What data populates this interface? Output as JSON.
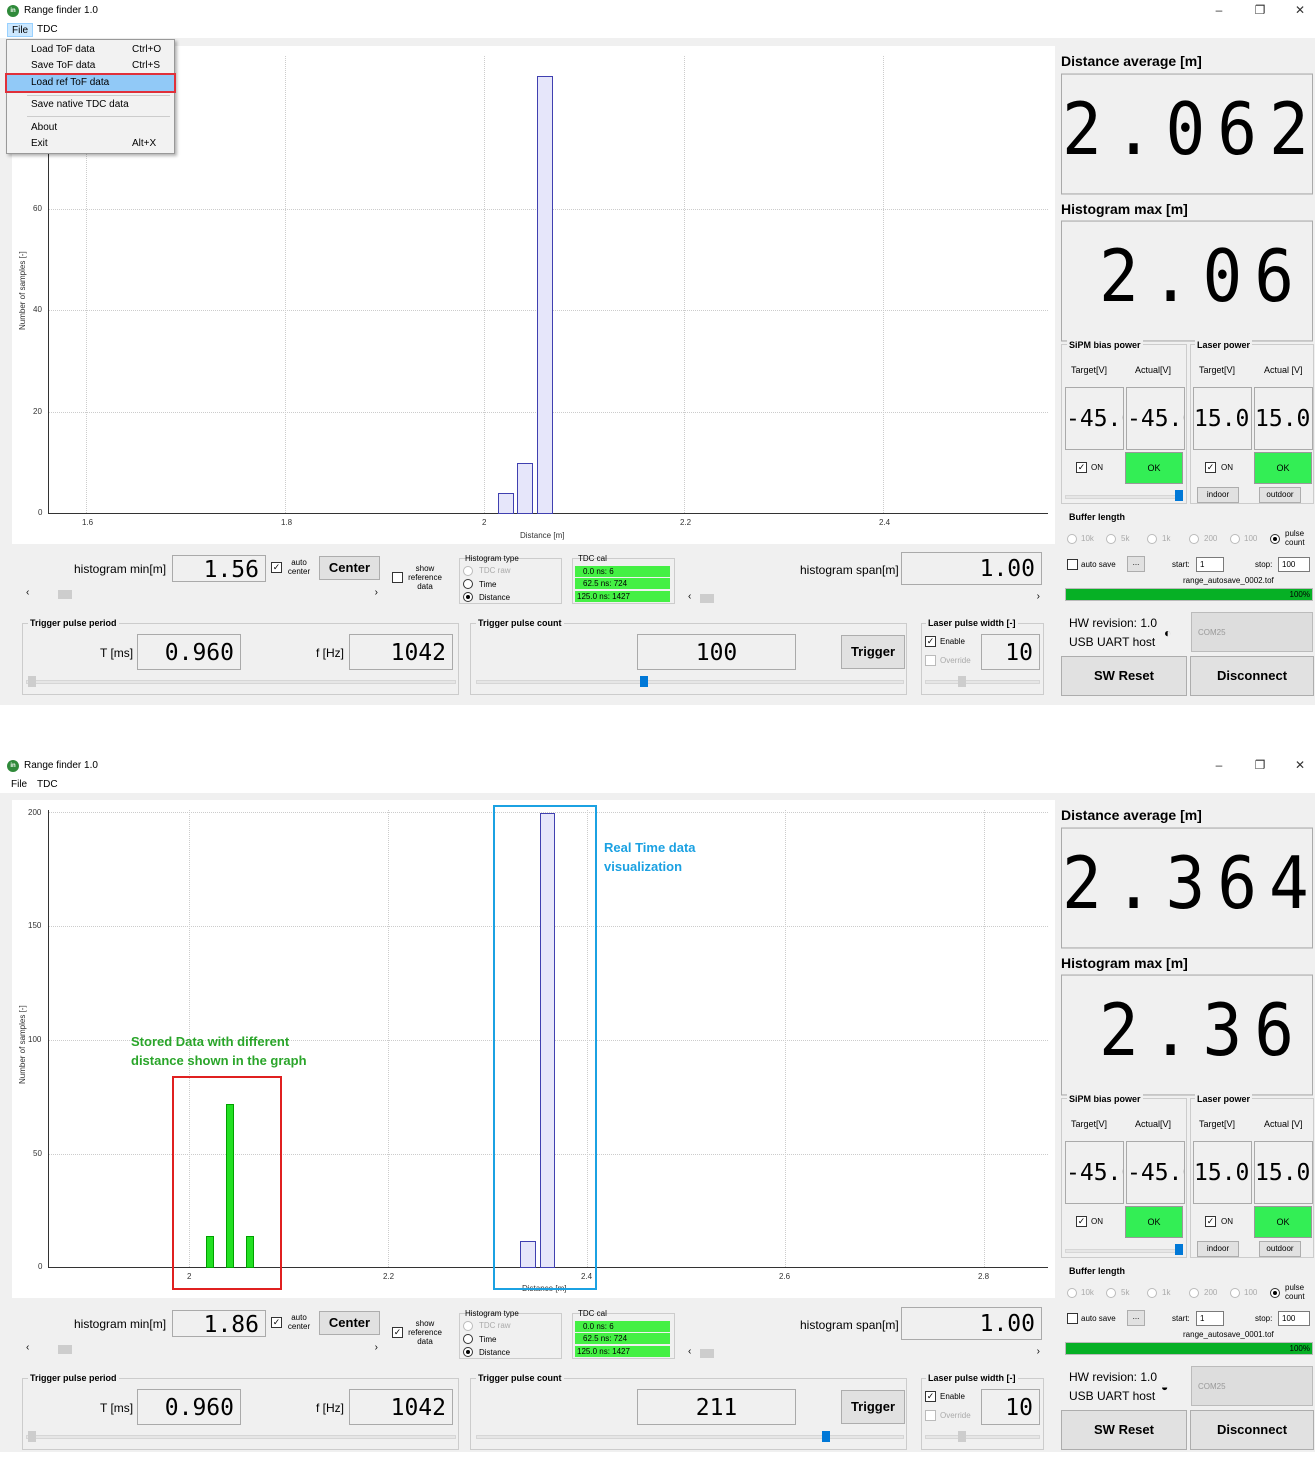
{
  "top": {
    "title": "Range finder 1.0",
    "menu": {
      "file": "File",
      "tdc": "TDC"
    },
    "dropdown": [
      {
        "label": "Load ToF data",
        "shortcut": "Ctrl+O"
      },
      {
        "label": "Save ToF data",
        "shortcut": "Ctrl+S"
      },
      {
        "label": "Load ref ToF data",
        "shortcut": ""
      },
      {
        "label": "Save native TDC data",
        "shortcut": ""
      },
      {
        "label": "About",
        "shortcut": ""
      },
      {
        "label": "Exit",
        "shortcut": "Alt+X"
      }
    ],
    "plot": {
      "ylabel": "Number of samples [-]",
      "xlabel": "Distance [m]",
      "xticks": [
        "1.6",
        "1.8",
        "2",
        "2.2",
        "2.4"
      ],
      "yticks": [
        "0",
        "20",
        "40",
        "60"
      ]
    },
    "chart_data": {
      "type": "bar",
      "xlabel": "Distance [m]",
      "ylabel": "Number of samples [-]",
      "x": [
        2.02,
        2.04,
        2.06
      ],
      "values": [
        4,
        10,
        86
      ]
    },
    "controls": {
      "hist_min_label": "histogram min[m]",
      "hist_min": "1.56",
      "auto_center": "auto center",
      "center_btn": "Center",
      "show_ref": "show reference data",
      "hist_type_title": "Histogram type",
      "hist_types": [
        "TDC raw",
        "Time",
        "Distance"
      ],
      "tdc_cal_title": "TDC cal",
      "tdc_cal": [
        "0.0 ns: 6",
        "62.5 ns: 724",
        "125.0 ns: 1427"
      ],
      "hist_span_label": "histogram span[m]",
      "hist_span": "1.00",
      "trig_period_title": "Trigger pulse period",
      "t_label": "T [ms]",
      "t_value": "0.960",
      "f_label": "f [Hz]",
      "f_value": "1042",
      "trig_count_title": "Trigger pulse count",
      "trig_count": "100",
      "trigger_btn": "Trigger",
      "laser_width_title": "Laser pulse width [-]",
      "enable": "Enable",
      "override": "Override",
      "laser_width": "10"
    },
    "right": {
      "dist_avg_label": "Distance average [m]",
      "dist_avg": "2.062",
      "hist_max_label": "Histogram max [m]",
      "hist_max": "2.06",
      "sipm_title": "SiPM bias power",
      "laser_title": "Laser power",
      "target_v": "Target[V]",
      "actual_v": "Actual[V]",
      "actual_v2": "Actual [V]",
      "sipm_target": "-45.0",
      "sipm_actual": "-45.0",
      "laser_target": "15.0",
      "laser_actual": "15.0",
      "on": "ON",
      "ok": "OK",
      "indoor": "indoor",
      "outdoor": "outdoor",
      "buffer_title": "Buffer length",
      "buffer_opts": [
        "10k",
        "5k",
        "1k",
        "200",
        "100",
        "pulse count"
      ],
      "auto_save": "auto save",
      "dots": "...",
      "start_label": "start:",
      "start": "1",
      "stop_label": "stop:",
      "stop": "100",
      "file": "range_autosave_0002.tof",
      "progress": "100%",
      "progress_value": 100,
      "hw_rev": "HW revision: 1.0",
      "usb": "USB UART host",
      "com": "COM25",
      "sw_reset": "SW Reset",
      "disconnect": "Disconnect"
    }
  },
  "bottom": {
    "title": "Range finder 1.0",
    "menu": {
      "file": "File",
      "tdc": "TDC"
    },
    "plot": {
      "ylabel": "Number of samples [-]",
      "xlabel": "Distance [m]",
      "xticks": [
        "2",
        "2.2",
        "2.4",
        "2.6",
        "2.8"
      ],
      "yticks": [
        "0",
        "50",
        "100",
        "150",
        "200"
      ]
    },
    "annotations": {
      "realtime": "Real Time data visualization",
      "stored": "Stored Data with different distance shown in the graph"
    },
    "chart_data": {
      "type": "bar",
      "xlabel": "Distance [m]",
      "ylabel": "Number of samples [-]",
      "series": [
        {
          "x": [
            2.34,
            2.36
          ],
          "values": [
            12,
            199
          ],
          "color": "#e6e6fa"
        },
        {
          "x": [
            2.02,
            2.04,
            2.06
          ],
          "values": [
            14,
            72,
            14
          ],
          "color": "#22e022"
        }
      ]
    },
    "controls": {
      "hist_min_label": "histogram min[m]",
      "hist_min": "1.86",
      "auto_center": "auto center",
      "center_btn": "Center",
      "show_ref": "show reference data",
      "hist_type_title": "Histogram type",
      "hist_types": [
        "TDC raw",
        "Time",
        "Distance"
      ],
      "tdc_cal_title": "TDC cal",
      "tdc_cal": [
        "0.0 ns: 6",
        "62.5 ns: 724",
        "125.0 ns: 1427"
      ],
      "hist_span_label": "histogram span[m]",
      "hist_span": "1.00",
      "trig_period_title": "Trigger pulse period",
      "t_label": "T [ms]",
      "t_value": "0.960",
      "f_label": "f [Hz]",
      "f_value": "1042",
      "trig_count_title": "Trigger pulse count",
      "trig_count": "211",
      "trigger_btn": "Trigger",
      "laser_width_title": "Laser pulse width [-]",
      "enable": "Enable",
      "override": "Override",
      "laser_width": "10"
    },
    "right": {
      "dist_avg_label": "Distance average [m]",
      "dist_avg": "2.364",
      "hist_max_label": "Histogram max [m]",
      "hist_max": "2.36",
      "sipm_title": "SiPM bias power",
      "laser_title": "Laser power",
      "target_v": "Target[V]",
      "actual_v": "Actual[V]",
      "actual_v2": "Actual [V]",
      "sipm_target": "-45.0",
      "sipm_actual": "-45.0",
      "laser_target": "15.0",
      "laser_actual": "15.0",
      "on": "ON",
      "ok": "OK",
      "indoor": "indoor",
      "outdoor": "outdoor",
      "buffer_title": "Buffer length",
      "buffer_opts": [
        "10k",
        "5k",
        "1k",
        "200",
        "100",
        "pulse count"
      ],
      "auto_save": "auto save",
      "dots": "...",
      "start_label": "start:",
      "start": "1",
      "stop_label": "stop:",
      "stop": "100",
      "file": "range_autosave_0001.tof",
      "progress": "100%",
      "progress_value": 100,
      "hw_rev": "HW revision: 1.0",
      "usb": "USB UART host",
      "com": "COM25",
      "sw_reset": "SW Reset",
      "disconnect": "Disconnect"
    }
  }
}
